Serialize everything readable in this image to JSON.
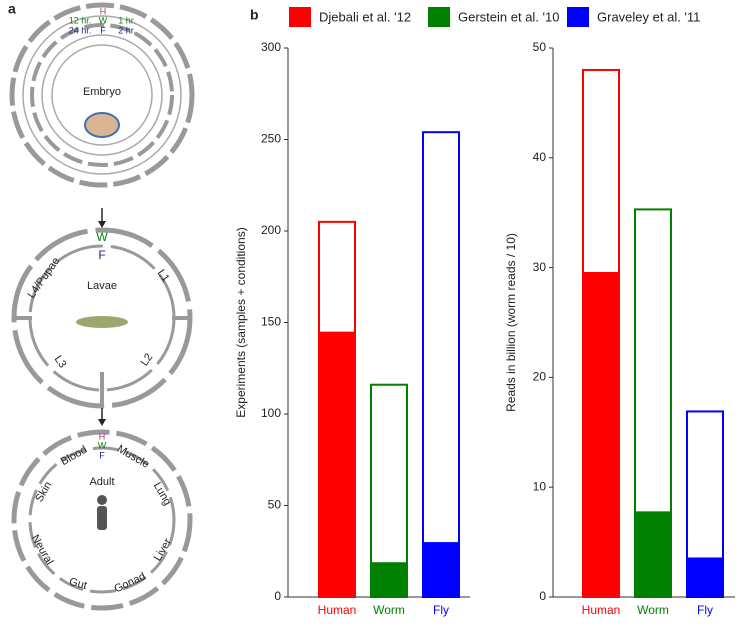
{
  "panel_a": {
    "label": "a",
    "embryo": {
      "labels": [
        "H",
        "W",
        "F",
        "12 hr.",
        "1 hr.",
        "24 hr.",
        "2 hr.",
        "Embryo"
      ]
    },
    "larvae": {
      "labels": [
        "W",
        "F",
        "L4/Pupae",
        "L1",
        "Lavae",
        "L3",
        "L2"
      ]
    },
    "adult": {
      "labels": [
        "H",
        "W",
        "F",
        "Blood",
        "Muscle",
        "Skin",
        "Lung",
        "Adult",
        "Neural",
        "Liver",
        "Gut",
        "Gonad"
      ]
    }
  },
  "panel_b": {
    "label": "b",
    "legend": [
      {
        "label": "Djebali et al. '12",
        "color": "#ff0000"
      },
      {
        "label": "Gerstein et al. '10",
        "color": "#008000"
      },
      {
        "label": "Graveley et al. '11",
        "color": "#0000ff"
      }
    ]
  },
  "chart_data": [
    {
      "type": "bar",
      "ylabel": "Experiments (samples + conditions)",
      "categories": [
        "Human",
        "Worm",
        "Fly"
      ],
      "colors": [
        "#ff0000",
        "#008000",
        "#0000ff"
      ],
      "values": [
        205,
        116,
        254
      ],
      "filled_values": [
        145,
        19,
        30
      ],
      "ylim": [
        0,
        300
      ],
      "yticks": [
        0,
        50,
        100,
        150,
        200,
        250,
        300
      ]
    },
    {
      "type": "bar",
      "ylabel": "Reads in billion (worm reads / 10)",
      "categories": [
        "Human",
        "Worm",
        "Fly"
      ],
      "colors": [
        "#ff0000",
        "#008000",
        "#0000ff"
      ],
      "values": [
        48,
        35.3,
        16.9
      ],
      "filled_values": [
        29.6,
        7.8,
        3.6
      ],
      "ylim": [
        0,
        50
      ],
      "yticks": [
        0,
        10,
        20,
        30,
        40,
        50
      ]
    }
  ]
}
